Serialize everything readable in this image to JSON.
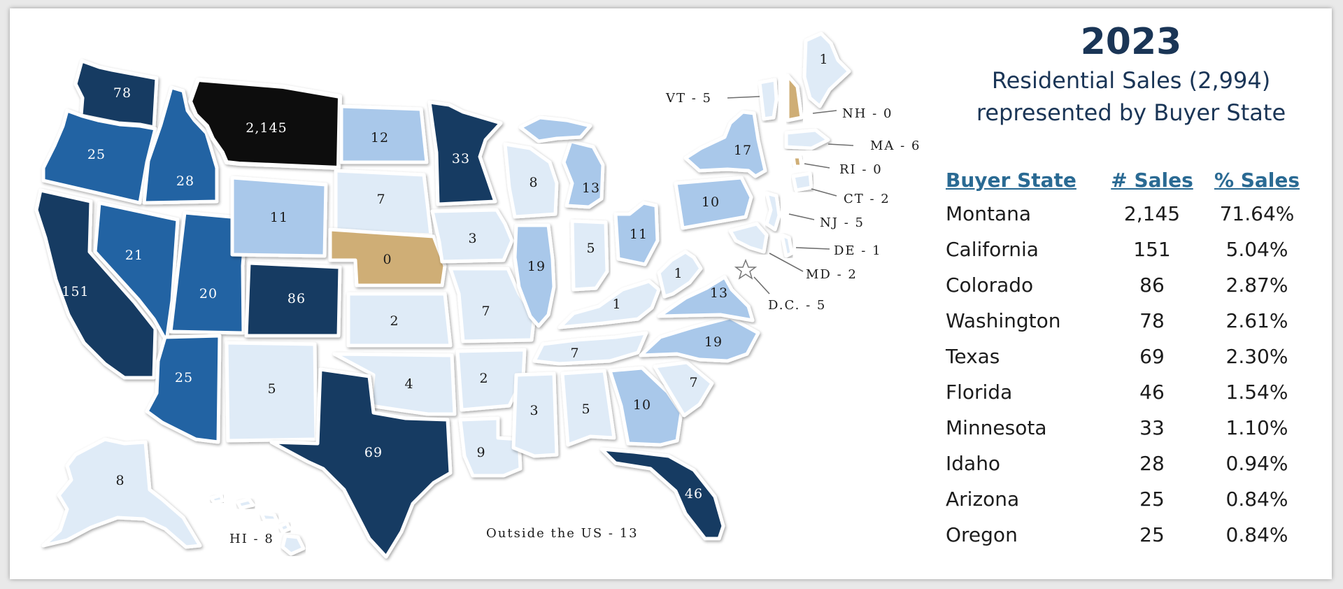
{
  "title": {
    "year": "2023",
    "line1": "Residential Sales (2,994)",
    "line2": "represented by Buyer State"
  },
  "colors": {
    "highest": "#0d0d0d",
    "dark": "#173a62",
    "medium": "#2463a3",
    "light": "#a9c8ea",
    "lightest": "#dfebf7",
    "zero": "#cfae76"
  },
  "states": {
    "MT": "2,145",
    "WA": "78",
    "OR": "25",
    "ID": "28",
    "CA": "151",
    "NV": "21",
    "UT": "20",
    "AZ": "25",
    "WY": "11",
    "CO": "86",
    "NM": "5",
    "ND": "12",
    "SD": "7",
    "NE": "0",
    "KS": "2",
    "OK": "4",
    "TX": "69",
    "MN": "33",
    "IA": "3",
    "MO": "7",
    "AR": "2",
    "LA": "9",
    "WI": "8",
    "IL": "19",
    "MI": "13",
    "IN": "5",
    "OH": "11",
    "KY": "1",
    "TN": "7",
    "MS": "3",
    "AL": "5",
    "GA": "10",
    "FL": "46",
    "SC": "7",
    "NC": "19",
    "VA": "13",
    "WV": "1",
    "PA": "10",
    "NY": "17",
    "ME": "1",
    "AK": "8"
  },
  "callouts": {
    "VT": "VT - 5",
    "NH": "NH - 0",
    "MA": "MA - 6",
    "RI": "RI - 0",
    "CT": "CT - 2",
    "NJ": "NJ - 5",
    "DE": "DE - 1",
    "MD": "MD - 2",
    "DC": "D.C. - 5",
    "HI": "HI - 8",
    "outside": "Outside the US - 13"
  },
  "table": {
    "headers": [
      "Buyer State",
      "# Sales",
      "% Sales"
    ],
    "rows": [
      [
        "Montana",
        "2,145",
        "71.64%"
      ],
      [
        "California",
        "151",
        "5.04%"
      ],
      [
        "Colorado",
        "86",
        "2.87%"
      ],
      [
        "Washington",
        "78",
        "2.61%"
      ],
      [
        "Texas",
        "69",
        "2.30%"
      ],
      [
        "Florida",
        "46",
        "1.54%"
      ],
      [
        "Minnesota",
        "33",
        "1.10%"
      ],
      [
        "Idaho",
        "28",
        "0.94%"
      ],
      [
        "Arizona",
        "25",
        "0.84%"
      ],
      [
        "Oregon",
        "25",
        "0.84%"
      ]
    ]
  }
}
